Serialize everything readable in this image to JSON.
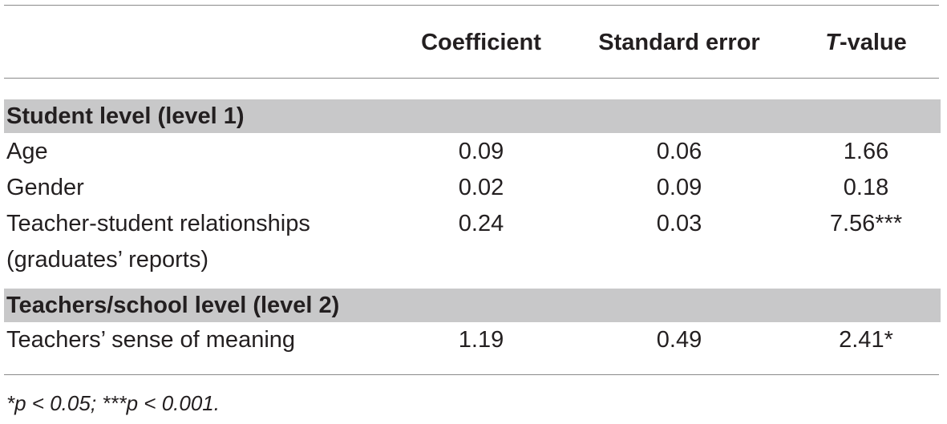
{
  "table": {
    "headers": {
      "coefficient": "Coefficient",
      "standard_error": "Standard error",
      "t_value_italic": "T",
      "t_value_rest": "-value"
    },
    "sections": [
      {
        "title": "Student level (level 1)",
        "rows": [
          {
            "label": "Age",
            "coefficient": "0.09",
            "standard_error": "0.06",
            "t_value": "1.66"
          },
          {
            "label": "Gender",
            "coefficient": "0.02",
            "standard_error": "0.09",
            "t_value": "0.18"
          },
          {
            "label": "Teacher-student relationships",
            "label_line2": "(graduates’ reports)",
            "coefficient": "0.24",
            "standard_error": "0.03",
            "t_value": "7.56***"
          }
        ]
      },
      {
        "title": "Teachers/school level (level 2)",
        "rows": [
          {
            "label": "Teachers’ sense of meaning",
            "coefficient": "1.19",
            "standard_error": "0.49",
            "t_value": "2.41*"
          }
        ]
      }
    ],
    "footnote": "*p < 0.05; ***p < 0.001."
  }
}
